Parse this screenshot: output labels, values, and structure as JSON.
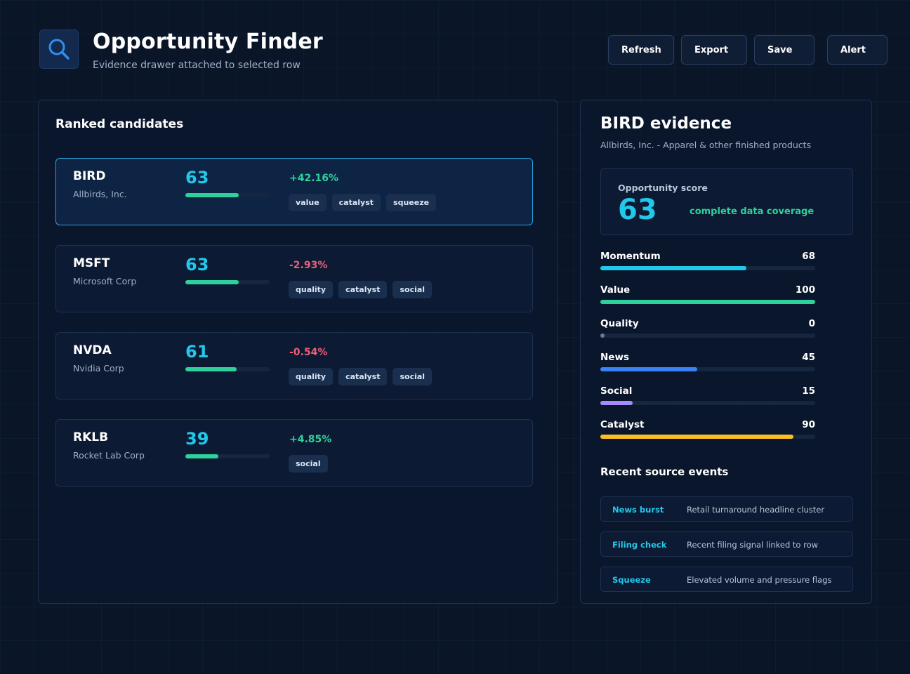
{
  "header": {
    "logo_icon": "search-icon",
    "title": "Opportunity Finder",
    "subtitle": "Evidence drawer attached to selected row",
    "buttons": [
      "Refresh",
      "Export",
      "Save",
      "Alert"
    ]
  },
  "candidates": {
    "title": "Ranked candidates",
    "rows": [
      {
        "ticker": "BIRD",
        "company": "Allbirds, Inc.",
        "score": "63",
        "score_fraction": 0.63,
        "change": "+42.16%",
        "direction": "pos",
        "tags": [
          "value",
          "catalyst",
          "squeeze"
        ],
        "selected": true
      },
      {
        "ticker": "MSFT",
        "company": "Microsoft Corp",
        "score": "63",
        "score_fraction": 0.63,
        "change": "-2.93%",
        "direction": "neg",
        "tags": [
          "quality",
          "catalyst",
          "social"
        ],
        "selected": false
      },
      {
        "ticker": "NVDA",
        "company": "Nvidia Corp",
        "score": "61",
        "score_fraction": 0.61,
        "change": "-0.54%",
        "direction": "neg",
        "tags": [
          "quality",
          "catalyst",
          "social"
        ],
        "selected": false
      },
      {
        "ticker": "RKLB",
        "company": "Rocket Lab Corp",
        "score": "39",
        "score_fraction": 0.39,
        "change": "+4.85%",
        "direction": "pos",
        "tags": [
          "social"
        ],
        "selected": false
      }
    ]
  },
  "evidence": {
    "title": "BIRD evidence",
    "subtitle": "Allbirds, Inc. - Apparel & other finished products",
    "score_label": "Opportunity score",
    "score_value": "63",
    "coverage": "complete data coverage",
    "metrics": [
      {
        "label": "Momentum",
        "value": "68",
        "fraction": 0.68,
        "color": "#22c8ea"
      },
      {
        "label": "Value",
        "value": "100",
        "fraction": 1.0,
        "color": "#2fd19a"
      },
      {
        "label": "Quality",
        "value": "0",
        "fraction": 0.0,
        "color": "#6b7a90"
      },
      {
        "label": "News",
        "value": "45",
        "fraction": 0.45,
        "color": "#3b82f6"
      },
      {
        "label": "Social",
        "value": "15",
        "fraction": 0.15,
        "color": "#a78bfa"
      },
      {
        "label": "Catalyst",
        "value": "90",
        "fraction": 0.9,
        "color": "#fbbf24"
      }
    ],
    "events_title": "Recent source events",
    "events": [
      {
        "type": "News burst",
        "desc": "Retail turnaround headline cluster"
      },
      {
        "type": "Filing check",
        "desc": "Recent filing signal linked to row"
      },
      {
        "type": "Squeeze",
        "desc": "Elevated volume and pressure flags"
      }
    ]
  }
}
